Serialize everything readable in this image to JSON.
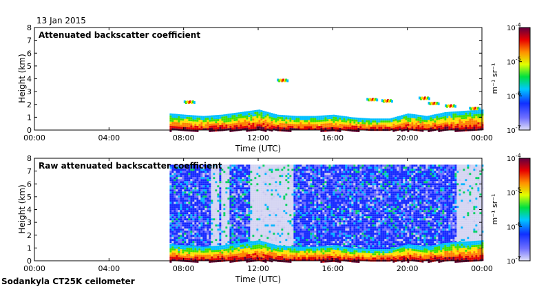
{
  "header": {
    "date": "13 Jan 2015"
  },
  "footer": {
    "instrument": "Sodankyla CT25K ceilometer"
  },
  "colorbar": {
    "unit": "m⁻¹ sr⁻¹",
    "scale": "log",
    "ticks": [
      {
        "base": "10",
        "exp": "-4"
      },
      {
        "base": "10",
        "exp": "-5"
      },
      {
        "base": "10",
        "exp": "-6"
      },
      {
        "base": "10",
        "exp": "-7"
      }
    ]
  },
  "chart_data": [
    {
      "type": "heatmap",
      "title": "Attenuated backscatter coefficient",
      "xlabel": "Time (UTC)",
      "ylabel": "Height (km)",
      "x_ticks": [
        "00:00",
        "04:00",
        "08:00",
        "12:00",
        "16:00",
        "20:00",
        "00:00"
      ],
      "xlim_hours": [
        0,
        24
      ],
      "ylim": [
        0,
        8
      ],
      "y_ticks": [
        "0",
        "1",
        "2",
        "3",
        "4",
        "5",
        "6",
        "7",
        "8"
      ],
      "color_range": [
        1e-07,
        0.0001
      ],
      "data_start_hour": 7.25,
      "boundary_layer_top_km": [
        [
          7.25,
          1.3
        ],
        [
          8,
          1.2
        ],
        [
          9,
          1.1
        ],
        [
          10,
          1.2
        ],
        [
          11,
          1.4
        ],
        [
          12,
          1.6
        ],
        [
          13,
          1.2
        ],
        [
          14,
          1.1
        ],
        [
          15,
          1.1
        ],
        [
          16,
          1.2
        ],
        [
          17,
          1.0
        ],
        [
          18,
          0.9
        ],
        [
          19,
          0.9
        ],
        [
          20,
          1.3
        ],
        [
          21,
          1.1
        ],
        [
          22,
          1.4
        ],
        [
          23,
          1.5
        ],
        [
          24,
          1.6
        ]
      ],
      "cloud_patches": [
        {
          "hour": 8.3,
          "height_km": 2.2
        },
        {
          "hour": 13.3,
          "height_km": 3.9
        },
        {
          "hour": 18.1,
          "height_km": 2.4
        },
        {
          "hour": 18.9,
          "height_km": 2.3
        },
        {
          "hour": 20.9,
          "height_km": 2.5
        },
        {
          "hour": 21.4,
          "height_km": 2.1
        },
        {
          "hour": 22.3,
          "height_km": 1.9
        },
        {
          "hour": 23.6,
          "height_km": 1.7
        }
      ]
    },
    {
      "type": "heatmap",
      "title": "Raw attenuated backscatter coefficient",
      "xlabel": "Time (UTC)",
      "ylabel": "Height (km)",
      "x_ticks": [
        "00:00",
        "04:00",
        "08:00",
        "12:00",
        "16:00",
        "20:00",
        "00:00"
      ],
      "xlim_hours": [
        0,
        24
      ],
      "ylim": [
        0,
        8
      ],
      "y_ticks": [
        "0",
        "1",
        "2",
        "3",
        "4",
        "5",
        "6",
        "7",
        "8"
      ],
      "color_range": [
        1e-07,
        0.0001
      ],
      "data_start_hour": 7.25,
      "noise_top_km": 7.5,
      "low_noise_intervals_hours": [
        [
          9.4,
          9.8
        ],
        [
          10.0,
          10.4
        ],
        [
          11.5,
          13.8
        ],
        [
          22.6,
          24.0
        ]
      ],
      "boundary_layer_top_km": [
        [
          7.25,
          1.3
        ],
        [
          8,
          1.2
        ],
        [
          9,
          1.1
        ],
        [
          10,
          1.2
        ],
        [
          11,
          1.4
        ],
        [
          12,
          1.6
        ],
        [
          13,
          1.2
        ],
        [
          14,
          1.1
        ],
        [
          15,
          1.1
        ],
        [
          16,
          1.2
        ],
        [
          17,
          1.0
        ],
        [
          18,
          0.9
        ],
        [
          19,
          0.9
        ],
        [
          20,
          1.3
        ],
        [
          21,
          1.1
        ],
        [
          22,
          1.4
        ],
        [
          23,
          1.5
        ],
        [
          24,
          1.6
        ]
      ]
    }
  ]
}
